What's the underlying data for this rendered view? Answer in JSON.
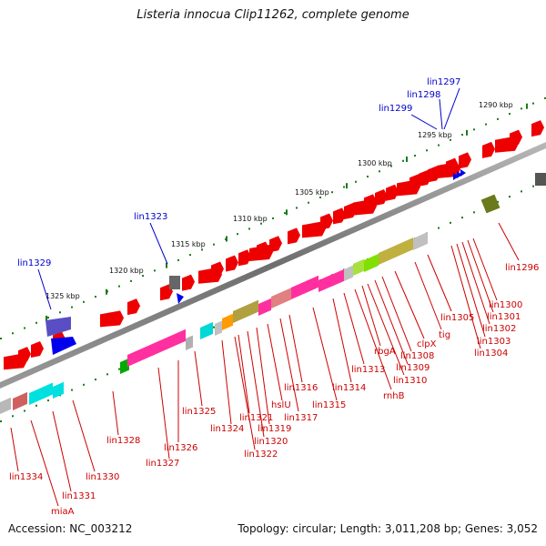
{
  "title": "Listeria innocua Clip11262, complete genome",
  "footer": {
    "accession": "Accession: NC_003212",
    "summary": "Topology: circular; Length: 3,011,208 bp; Genes: 3,052"
  },
  "colors": {
    "backbone": "#7a7a7a",
    "forward_gene": "#ee0000",
    "label_red": "#cc0000",
    "label_blue": "#0000cc",
    "tick_green": "#1a7a1a"
  },
  "scale_labels": [
    "1290 kbp",
    "1295 kbp",
    "1300 kbp",
    "1305 kbp",
    "1310 kbp",
    "1315 kbp",
    "1320 kbp",
    "1325 kbp"
  ],
  "blue_labels": [
    "lin1297",
    "lin1298",
    "lin1299",
    "lin1323",
    "lin1329"
  ],
  "red_labels": [
    "lin1296",
    "lin1300",
    "lin1301",
    "lin1302",
    "lin1303",
    "lin1304",
    "lin1305",
    "tig",
    "clpX",
    "lin1308",
    "lin1309",
    "lin1310",
    "rbgA",
    "rnhB",
    "lin1313",
    "lin1314",
    "lin1315",
    "lin1316",
    "lin1317",
    "hslU",
    "lin1319",
    "lin1320",
    "lin1321",
    "lin1322",
    "lin1324",
    "lin1325",
    "lin1326",
    "lin1327",
    "lin1328",
    "lin1330",
    "lin1331",
    "miaA",
    "lin1334"
  ]
}
